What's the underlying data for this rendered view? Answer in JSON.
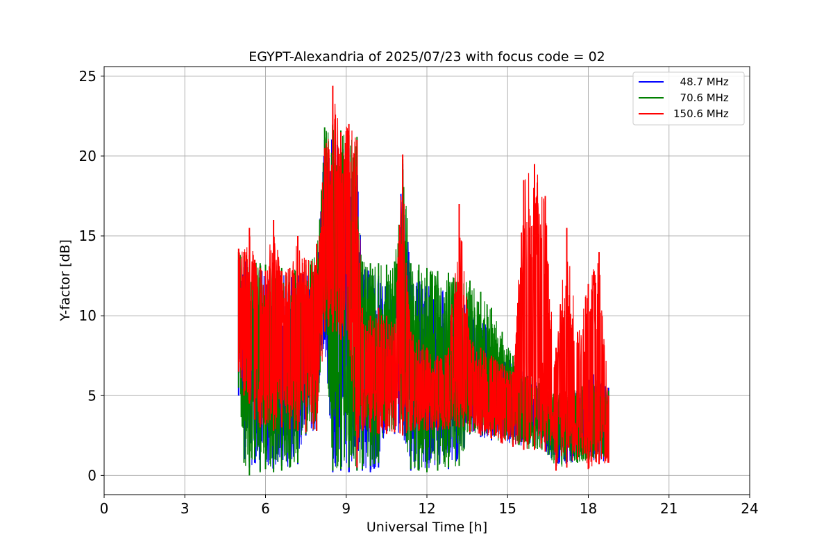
{
  "chart_data": {
    "type": "line",
    "title": "EGYPT-Alexandria of 2025/07/23 with focus code = 02",
    "xlabel": "Universal Time [h]",
    "ylabel": "Y-factor [dB]",
    "xlim": [
      0,
      24
    ],
    "ylim": [
      -1.2,
      25.6
    ],
    "xticks": [
      0,
      3,
      6,
      9,
      12,
      15,
      18,
      21,
      24
    ],
    "yticks": [
      0,
      5,
      10,
      15,
      20,
      25
    ],
    "grid": true,
    "legend_position": "top-right",
    "series": [
      {
        "name": "  48.7 MHz",
        "color": "#0000ff",
        "x": [
          5.0,
          5.2,
          5.4,
          5.6,
          5.8,
          6.0,
          6.3,
          6.6,
          6.9,
          7.2,
          7.5,
          7.9,
          8.2,
          8.5,
          8.8,
          9.1,
          9.4,
          9.6,
          9.9,
          10.2,
          10.5,
          10.8,
          11.1,
          11.4,
          11.7,
          12.0,
          12.4,
          12.8,
          13.2,
          13.6,
          14.0,
          14.4,
          14.8,
          15.2,
          15.6,
          16.0,
          16.4,
          16.8,
          17.2,
          17.6,
          18.0,
          18.4,
          18.75
        ],
        "low": [
          5.0,
          1.0,
          0.5,
          0.8,
          0.3,
          0.5,
          0.4,
          0.6,
          0.5,
          0.7,
          2.5,
          2.8,
          8.5,
          0.2,
          0.3,
          0.2,
          0.3,
          0.3,
          0.2,
          0.5,
          2.8,
          2.6,
          2.6,
          0.3,
          0.4,
          0.3,
          0.3,
          0.4,
          0.6,
          2.6,
          2.4,
          2.2,
          2.0,
          1.8,
          1.6,
          1.6,
          1.5,
          0.5,
          0.6,
          1.0,
          1.0,
          0.8,
          0.8
        ],
        "high": [
          13.5,
          13.5,
          13.2,
          13.0,
          13.0,
          12.8,
          12.8,
          12.7,
          12.6,
          12.6,
          12.7,
          13.0,
          21.0,
          21.2,
          21.0,
          20.5,
          20.0,
          13.0,
          12.8,
          12.5,
          12.0,
          12.0,
          19.5,
          12.5,
          12.2,
          12.0,
          11.8,
          11.5,
          11.0,
          10.5,
          10.0,
          9.0,
          8.0,
          7.0,
          6.5,
          6.0,
          5.0,
          4.5,
          5.5,
          5.5,
          6.5,
          6.5,
          5.5
        ]
      },
      {
        "name": "  70.6 MHz",
        "color": "#008000",
        "x": [
          5.0,
          5.2,
          5.4,
          5.6,
          5.8,
          6.0,
          6.3,
          6.6,
          6.9,
          7.2,
          7.5,
          7.9,
          8.2,
          8.5,
          8.8,
          9.1,
          9.4,
          9.6,
          9.9,
          10.2,
          10.5,
          10.8,
          11.1,
          11.4,
          11.7,
          12.0,
          12.4,
          12.8,
          13.2,
          13.6,
          14.0,
          14.4,
          14.8,
          15.2,
          15.6,
          16.0,
          16.4,
          16.8,
          17.2,
          17.6,
          18.0,
          18.4,
          18.75
        ],
        "low": [
          5.5,
          0.8,
          0.0,
          1.0,
          0.2,
          0.4,
          0.2,
          0.3,
          0.5,
          0.8,
          2.6,
          2.8,
          9.0,
          0.3,
          0.4,
          0.5,
          0.3,
          0.4,
          0.6,
          0.8,
          2.8,
          2.7,
          2.6,
          0.4,
          0.3,
          0.2,
          0.3,
          0.5,
          0.6,
          2.6,
          2.5,
          2.3,
          2.1,
          1.9,
          1.7,
          1.6,
          1.5,
          0.4,
          0.5,
          0.8,
          0.9,
          0.8,
          0.9
        ],
        "high": [
          14.0,
          14.0,
          13.8,
          13.5,
          13.3,
          13.2,
          13.1,
          13.0,
          13.0,
          13.0,
          13.2,
          14.0,
          21.8,
          22.0,
          21.6,
          21.3,
          21.2,
          13.4,
          13.3,
          13.3,
          13.2,
          13.4,
          19.8,
          13.3,
          13.2,
          13.0,
          12.8,
          12.7,
          12.5,
          12.2,
          11.5,
          10.5,
          9.0,
          7.5,
          6.5,
          6.0,
          5.5,
          5.0,
          5.5,
          5.5,
          6.2,
          6.0,
          5.3
        ]
      },
      {
        "name": "150.6 MHz",
        "color": "#ff0000",
        "x": [
          5.0,
          5.2,
          5.4,
          5.6,
          5.8,
          6.0,
          6.3,
          6.6,
          6.9,
          7.2,
          7.5,
          7.9,
          8.2,
          8.5,
          8.8,
          9.1,
          9.4,
          9.6,
          9.9,
          10.2,
          10.5,
          10.8,
          11.1,
          11.4,
          11.7,
          12.0,
          12.4,
          12.8,
          13.2,
          13.6,
          14.0,
          14.4,
          14.8,
          15.2,
          15.6,
          16.0,
          16.4,
          16.8,
          17.2,
          17.6,
          18.0,
          18.4,
          18.75
        ],
        "low": [
          6.5,
          5.0,
          4.5,
          3.5,
          3.0,
          3.2,
          2.8,
          3.0,
          2.9,
          2.8,
          2.7,
          2.8,
          9.0,
          9.0,
          8.5,
          8.5,
          0.5,
          2.8,
          2.7,
          2.6,
          2.6,
          2.7,
          2.5,
          2.8,
          2.8,
          2.8,
          2.8,
          2.9,
          3.0,
          2.7,
          2.5,
          2.3,
          2.0,
          1.8,
          1.6,
          1.6,
          1.5,
          0.3,
          0.5,
          1.0,
          0.4,
          0.7,
          0.8
        ],
        "high": [
          14.2,
          14.0,
          15.5,
          13.5,
          13.0,
          12.8,
          16.0,
          12.8,
          13.0,
          15.0,
          13.5,
          14.5,
          20.5,
          24.4,
          21.5,
          22.0,
          21.0,
          10.5,
          10.0,
          10.5,
          10.0,
          9.5,
          20.1,
          9.0,
          8.5,
          8.0,
          7.5,
          8.0,
          17.0,
          8.5,
          8.0,
          7.5,
          7.0,
          6.5,
          18.5,
          19.5,
          17.5,
          8.0,
          15.5,
          9.0,
          12.0,
          14.0,
          5.0
        ]
      }
    ]
  }
}
